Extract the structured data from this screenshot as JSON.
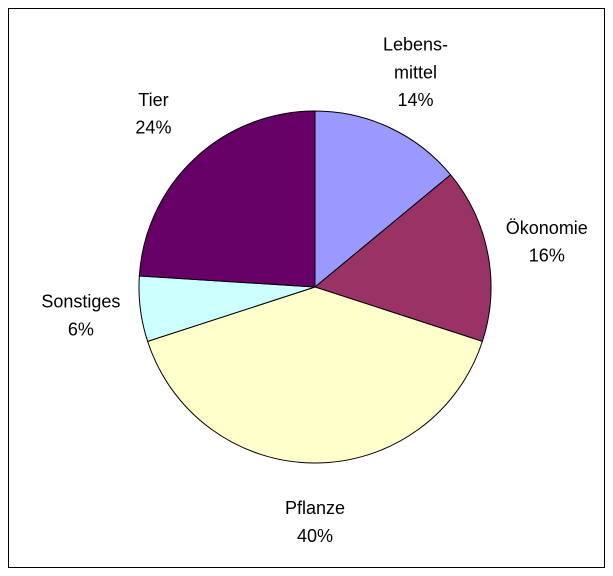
{
  "chart_data": {
    "type": "pie",
    "categories": [
      "Lebens-\nmittel",
      "Ökonomie",
      "Pflanze",
      "Sonstiges",
      "Tier"
    ],
    "values": [
      14,
      16,
      40,
      6,
      24
    ],
    "value_labels": [
      "14%",
      "16%",
      "40%",
      "6%",
      "24%"
    ],
    "colors": [
      "#9999ff",
      "#993366",
      "#ffffcc",
      "#ccffff",
      "#660066"
    ]
  }
}
